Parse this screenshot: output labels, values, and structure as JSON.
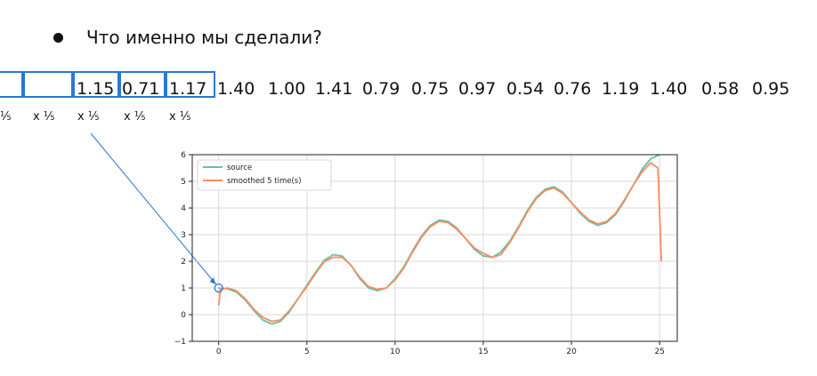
{
  "slide": {
    "bullet_text": "Что именно мы сделали?",
    "numbers": [
      "1.15",
      "0.71",
      "1.17",
      "1.40",
      "1.00",
      "1.41",
      "0.79",
      "0.75",
      "0.97",
      "0.54",
      "0.76",
      "1.19",
      "1.40",
      "0.58",
      "0.95"
    ],
    "fractions": [
      "⅕",
      "x ⅕",
      "x ⅕",
      "x ⅕",
      "x ⅕"
    ]
  },
  "chart_data": {
    "type": "line",
    "xlim": [
      -1.5,
      26
    ],
    "ylim": [
      -1,
      6
    ],
    "xticks": [
      "0",
      "5",
      "10",
      "15",
      "20",
      "25"
    ],
    "yticks": [
      "−1",
      "0",
      "1",
      "2",
      "3",
      "4",
      "5",
      "6"
    ],
    "grid": true,
    "legend_position": "top-left",
    "series": [
      {
        "name": "source",
        "color": "#66c2a5",
        "x": [
          0,
          0.5,
          1,
          1.5,
          2,
          2.5,
          3,
          3.5,
          4,
          4.5,
          5,
          5.5,
          6,
          6.5,
          7,
          7.5,
          8,
          8.5,
          9,
          9.5,
          10,
          10.5,
          11,
          11.5,
          12,
          12.5,
          13,
          13.5,
          14,
          14.5,
          15,
          15.5,
          16,
          16.5,
          17,
          17.5,
          18,
          18.5,
          19,
          19.5,
          20,
          20.5,
          21,
          21.5,
          22,
          22.5,
          23,
          23.5,
          24,
          24.5,
          25
        ],
        "y": [
          1.0,
          0.97,
          0.85,
          0.55,
          0.15,
          -0.2,
          -0.35,
          -0.25,
          0.1,
          0.6,
          1.1,
          1.6,
          2.05,
          2.25,
          2.2,
          1.85,
          1.35,
          1.0,
          0.9,
          1.0,
          1.35,
          1.8,
          2.4,
          2.95,
          3.35,
          3.55,
          3.5,
          3.25,
          2.85,
          2.45,
          2.2,
          2.15,
          2.35,
          2.75,
          3.3,
          3.9,
          4.4,
          4.7,
          4.8,
          4.6,
          4.2,
          3.8,
          3.5,
          3.35,
          3.45,
          3.75,
          4.25,
          4.85,
          5.45,
          5.85,
          6.0
        ]
      },
      {
        "name": "smoothed 5 time(s)",
        "color": "#fc8d62",
        "x": [
          0,
          0.1,
          0.5,
          1,
          1.5,
          2,
          2.5,
          3,
          3.5,
          4,
          4.5,
          5,
          5.5,
          6,
          6.5,
          7,
          7.5,
          8,
          8.5,
          9,
          9.5,
          10,
          10.5,
          11,
          11.5,
          12,
          12.5,
          13,
          13.5,
          14,
          14.5,
          15,
          15.5,
          16,
          16.5,
          17,
          17.5,
          18,
          18.5,
          19,
          19.5,
          20,
          20.5,
          21,
          21.5,
          22,
          22.5,
          23,
          23.5,
          24,
          24.5,
          24.9,
          25.1
        ],
        "y": [
          0.35,
          0.95,
          1.0,
          0.9,
          0.6,
          0.2,
          -0.1,
          -0.25,
          -0.2,
          0.15,
          0.6,
          1.05,
          1.55,
          2.0,
          2.15,
          2.15,
          1.85,
          1.4,
          1.05,
          0.95,
          1.0,
          1.3,
          1.75,
          2.35,
          2.9,
          3.3,
          3.5,
          3.45,
          3.2,
          2.85,
          2.5,
          2.3,
          2.15,
          2.25,
          2.7,
          3.25,
          3.85,
          4.35,
          4.65,
          4.75,
          4.55,
          4.2,
          3.85,
          3.55,
          3.4,
          3.5,
          3.8,
          4.3,
          4.85,
          5.35,
          5.7,
          5.5,
          2.0
        ]
      }
    ],
    "annotation_marker": {
      "x": 0,
      "y": 1.0
    }
  }
}
